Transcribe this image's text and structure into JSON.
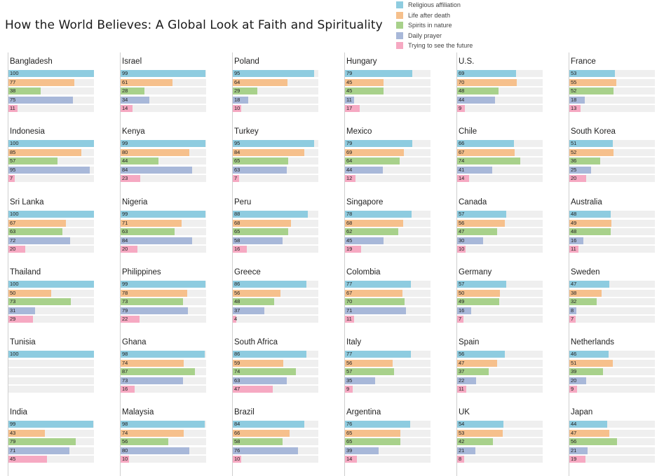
{
  "chart_data": {
    "type": "bar",
    "title": "How the World Believes: A Global Look at Faith and Spirituality",
    "xlim": [
      0,
      100
    ],
    "layout": "small multiples, 6 columns x 6 rows",
    "legend_placement": "top-right",
    "series": [
      {
        "name": "Religious affiliation",
        "color": "#8ecce0"
      },
      {
        "name": "Life after death",
        "color": "#f6c08c"
      },
      {
        "name": "Spirits in nature",
        "color": "#a8d18b"
      },
      {
        "name": "Daily prayer",
        "color": "#a8b8d9"
      },
      {
        "name": "Trying to see the future",
        "color": "#f6a9c2"
      }
    ],
    "panels": [
      {
        "country": "Bangladesh",
        "values": [
          100,
          77,
          38,
          75,
          11
        ]
      },
      {
        "country": "Israel",
        "values": [
          99,
          61,
          28,
          34,
          14
        ]
      },
      {
        "country": "Poland",
        "values": [
          95,
          64,
          29,
          18,
          10
        ]
      },
      {
        "country": "Hungary",
        "values": [
          79,
          45,
          45,
          11,
          17
        ]
      },
      {
        "country": "U.S.",
        "values": [
          69,
          70,
          48,
          44,
          9
        ]
      },
      {
        "country": "France",
        "values": [
          53,
          55,
          52,
          18,
          13
        ]
      },
      {
        "country": "Indonesia",
        "values": [
          100,
          85,
          57,
          95,
          7
        ]
      },
      {
        "country": "Kenya",
        "values": [
          99,
          80,
          44,
          84,
          23
        ]
      },
      {
        "country": "Turkey",
        "values": [
          95,
          84,
          65,
          63,
          7
        ]
      },
      {
        "country": "Mexico",
        "values": [
          79,
          69,
          64,
          44,
          12
        ]
      },
      {
        "country": "Chile",
        "values": [
          66,
          67,
          74,
          41,
          14
        ]
      },
      {
        "country": "South Korea",
        "values": [
          51,
          52,
          36,
          25,
          20
        ]
      },
      {
        "country": "Sri Lanka",
        "values": [
          100,
          67,
          63,
          72,
          20
        ]
      },
      {
        "country": "Nigeria",
        "values": [
          99,
          71,
          63,
          84,
          20
        ]
      },
      {
        "country": "Peru",
        "values": [
          88,
          68,
          65,
          58,
          16
        ]
      },
      {
        "country": "Singapore",
        "values": [
          78,
          68,
          62,
          45,
          19
        ]
      },
      {
        "country": "Canada",
        "values": [
          57,
          56,
          47,
          30,
          10
        ]
      },
      {
        "country": "Australia",
        "values": [
          48,
          49,
          48,
          16,
          11
        ]
      },
      {
        "country": "Thailand",
        "values": [
          100,
          50,
          73,
          31,
          29
        ]
      },
      {
        "country": "Philippines",
        "values": [
          99,
          78,
          73,
          79,
          22
        ]
      },
      {
        "country": "Greece",
        "values": [
          86,
          56,
          48,
          37,
          4
        ]
      },
      {
        "country": "Colombia",
        "values": [
          77,
          67,
          70,
          71,
          11
        ]
      },
      {
        "country": "Germany",
        "values": [
          57,
          50,
          49,
          16,
          7
        ]
      },
      {
        "country": "Sweden",
        "values": [
          47,
          38,
          32,
          8,
          7
        ]
      },
      {
        "country": "Tunisia",
        "values": [
          100,
          null,
          null,
          null,
          null
        ]
      },
      {
        "country": "Ghana",
        "values": [
          98,
          74,
          87,
          73,
          16
        ]
      },
      {
        "country": "South Africa",
        "values": [
          86,
          59,
          74,
          63,
          47
        ]
      },
      {
        "country": "Italy",
        "values": [
          77,
          56,
          57,
          35,
          9
        ]
      },
      {
        "country": "Spain",
        "values": [
          56,
          47,
          37,
          22,
          11
        ]
      },
      {
        "country": "Netherlands",
        "values": [
          46,
          51,
          39,
          20,
          9
        ]
      },
      {
        "country": "India",
        "values": [
          99,
          43,
          79,
          71,
          45
        ]
      },
      {
        "country": "Malaysia",
        "values": [
          98,
          74,
          56,
          80,
          10
        ]
      },
      {
        "country": "Brazil",
        "values": [
          84,
          66,
          58,
          76,
          10
        ]
      },
      {
        "country": "Argentina",
        "values": [
          76,
          65,
          65,
          39,
          14
        ]
      },
      {
        "country": "UK",
        "values": [
          54,
          53,
          42,
          21,
          8
        ]
      },
      {
        "country": "Japan",
        "values": [
          44,
          47,
          56,
          21,
          19
        ]
      }
    ]
  }
}
